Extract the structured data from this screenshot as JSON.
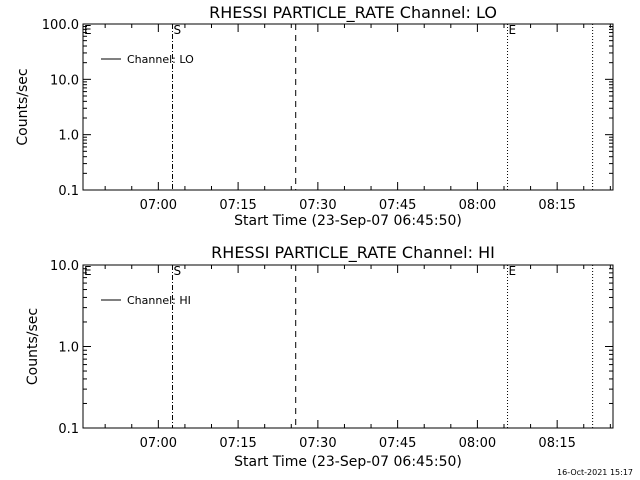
{
  "chart_data": [
    {
      "type": "line",
      "title": "RHESSI PARTICLE_RATE Channel: LO",
      "xlabel": "Start Time (23-Sep-07 06:45:50)",
      "ylabel": "Counts/sec",
      "y_scale": "log",
      "ylim": [
        0.1,
        100.0
      ],
      "y_tick_labels": [
        "0.1",
        "1.0",
        "10.0",
        "100.0"
      ],
      "y_tick_values": [
        0.1,
        1.0,
        10.0,
        100.0
      ],
      "xlim": [
        "06:45:50",
        "08:25:30"
      ],
      "x_tick_labels": [
        "07:00",
        "07:15",
        "07:30",
        "07:45",
        "08:00",
        "08:15"
      ],
      "x_tick_values": [
        "07:00",
        "07:15",
        "07:30",
        "07:45",
        "08:00",
        "08:15"
      ],
      "legend": {
        "entries": [
          "Channel: LO"
        ],
        "placement": "top-left"
      },
      "series": [
        {
          "name": "Channel: LO",
          "x": [],
          "y": []
        }
      ],
      "markers": [
        {
          "label": "E",
          "x": "06:45:50",
          "style": "solid"
        },
        {
          "label": "S",
          "x": "07:02:40",
          "style": "dashdot"
        },
        {
          "label": "",
          "x": "07:25:50",
          "style": "dashed"
        },
        {
          "label": "E",
          "x": "08:05:40",
          "style": "dotted"
        },
        {
          "label": "",
          "x": "08:21:40",
          "style": "dotted"
        }
      ],
      "grid": false
    },
    {
      "type": "line",
      "title": "RHESSI PARTICLE_RATE Channel: HI",
      "xlabel": "Start Time (23-Sep-07 06:45:50)",
      "ylabel": "Counts/sec",
      "y_scale": "log",
      "ylim": [
        0.1,
        10.0
      ],
      "y_tick_labels": [
        "0.1",
        "1.0",
        "10.0"
      ],
      "y_tick_values": [
        0.1,
        1.0,
        10.0
      ],
      "xlim": [
        "06:45:50",
        "08:25:30"
      ],
      "x_tick_labels": [
        "07:00",
        "07:15",
        "07:30",
        "07:45",
        "08:00",
        "08:15"
      ],
      "x_tick_values": [
        "07:00",
        "07:15",
        "07:30",
        "07:45",
        "08:00",
        "08:15"
      ],
      "legend": {
        "entries": [
          "Channel: HI"
        ],
        "placement": "top-left"
      },
      "series": [
        {
          "name": "Channel: HI",
          "x": [],
          "y": []
        }
      ],
      "markers": [
        {
          "label": "E",
          "x": "06:45:50",
          "style": "solid"
        },
        {
          "label": "S",
          "x": "07:02:40",
          "style": "dashdot"
        },
        {
          "label": "",
          "x": "07:25:50",
          "style": "dashed"
        },
        {
          "label": "E",
          "x": "08:05:40",
          "style": "dotted"
        },
        {
          "label": "",
          "x": "08:21:40",
          "style": "dotted"
        }
      ],
      "grid": false
    }
  ],
  "footer": {
    "timestamp": "16-Oct-2021 15:17"
  }
}
